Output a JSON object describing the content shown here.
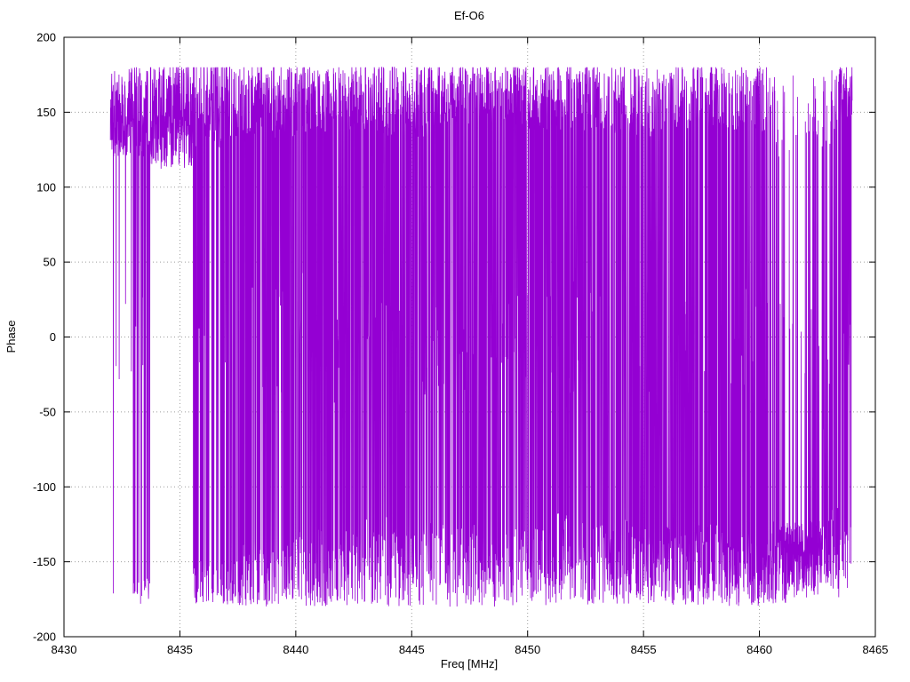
{
  "chart_data": {
    "type": "line",
    "title": "Ef-O6",
    "xlabel": "Freq [MHz]",
    "ylabel": "Phase",
    "xlim": [
      8430,
      8465
    ],
    "ylim": [
      -200,
      200
    ],
    "xticks": [
      8430,
      8435,
      8440,
      8445,
      8450,
      8455,
      8460,
      8465
    ],
    "yticks": [
      -200,
      -150,
      -100,
      -50,
      0,
      50,
      100,
      150,
      200
    ],
    "grid": true,
    "legend": "none",
    "line_color": "#9400d3",
    "grid_color": "#9e9e9e",
    "border_color": "#000000",
    "series_name": "Ef-O6 phase",
    "description": "Dense wrapped interferometric phase vs frequency; values wrap between -180 and +180 degrees. Mostly +130..+180 at the left edge, a clean all-positive band near 8434-8435.5, heavy full-range wrapping across 8436-8460, predominantly -120..-180 around 8460.5-8463, returning to +150..+180 at 8464.",
    "data_x_range": [
      8432.0,
      8464.0
    ],
    "data_y_clamp": [
      -180,
      180
    ],
    "synthesis": {
      "seed": 1337,
      "npoints": 4200,
      "segments": [
        {
          "x0": 8432.0,
          "x1": 8433.0,
          "p_bottom": 0.05,
          "p_mid": 0.02,
          "top": [
            150,
            60
          ],
          "bottom": [
            -172,
            14
          ],
          "mid": [
            0,
            60
          ]
        },
        {
          "x0": 8433.0,
          "x1": 8433.7,
          "p_bottom": 0.22,
          "p_mid": 0.02,
          "top": [
            150,
            60
          ],
          "bottom": [
            -170,
            18
          ],
          "mid": [
            0,
            60
          ]
        },
        {
          "x0": 8433.7,
          "x1": 8435.55,
          "p_bottom": 0.0,
          "p_mid": 0.0,
          "top": [
            148,
            72
          ],
          "bottom": [
            -170,
            10
          ],
          "mid": [
            0,
            40
          ]
        },
        {
          "x0": 8435.55,
          "x1": 8437.6,
          "p_bottom": 0.28,
          "p_mid": 0.03,
          "top": [
            155,
            58
          ],
          "bottom": [
            -164,
            30
          ],
          "mid": [
            0,
            70
          ]
        },
        {
          "x0": 8437.6,
          "x1": 8440.0,
          "p_bottom": 0.33,
          "p_mid": 0.06,
          "top": [
            158,
            50
          ],
          "bottom": [
            -158,
            44
          ],
          "mid": [
            0,
            80
          ]
        },
        {
          "x0": 8440.0,
          "x1": 8443.0,
          "p_bottom": 0.38,
          "p_mid": 0.08,
          "top": [
            160,
            46
          ],
          "bottom": [
            -154,
            52
          ],
          "mid": [
            0,
            90
          ]
        },
        {
          "x0": 8443.0,
          "x1": 8446.0,
          "p_bottom": 0.36,
          "p_mid": 0.1,
          "top": [
            158,
            50
          ],
          "bottom": [
            -150,
            60
          ],
          "mid": [
            0,
            90
          ]
        },
        {
          "x0": 8446.0,
          "x1": 8450.0,
          "p_bottom": 0.34,
          "p_mid": 0.16,
          "top": [
            162,
            40
          ],
          "bottom": [
            -150,
            60
          ],
          "mid": [
            0,
            80
          ]
        },
        {
          "x0": 8450.0,
          "x1": 8453.0,
          "p_bottom": 0.4,
          "p_mid": 0.12,
          "top": [
            160,
            44
          ],
          "bottom": [
            -148,
            62
          ],
          "mid": [
            0,
            80
          ]
        },
        {
          "x0": 8453.0,
          "x1": 8456.0,
          "p_bottom": 0.44,
          "p_mid": 0.1,
          "top": [
            158,
            48
          ],
          "bottom": [
            -150,
            56
          ],
          "mid": [
            0,
            80
          ]
        },
        {
          "x0": 8456.0,
          "x1": 8458.5,
          "p_bottom": 0.5,
          "p_mid": 0.08,
          "top": [
            160,
            44
          ],
          "bottom": [
            -152,
            54
          ],
          "mid": [
            0,
            70
          ]
        },
        {
          "x0": 8458.5,
          "x1": 8460.4,
          "p_bottom": 0.55,
          "p_mid": 0.06,
          "top": [
            158,
            46
          ],
          "bottom": [
            -155,
            50
          ],
          "mid": [
            0,
            70
          ]
        },
        {
          "x0": 8460.4,
          "x1": 8461.3,
          "p_bottom": 0.78,
          "p_mid": 0.04,
          "top": [
            150,
            60
          ],
          "bottom": [
            -150,
            56
          ],
          "mid": [
            0,
            60
          ]
        },
        {
          "x0": 8461.3,
          "x1": 8462.7,
          "p_bottom": 0.85,
          "p_mid": 0.03,
          "top": [
            155,
            50
          ],
          "bottom": [
            -148,
            52
          ],
          "mid": [
            0,
            60
          ]
        },
        {
          "x0": 8462.7,
          "x1": 8463.4,
          "p_bottom": 0.65,
          "p_mid": 0.1,
          "top": [
            150,
            60
          ],
          "bottom": [
            -142,
            56
          ],
          "mid": [
            -40,
            80
          ]
        },
        {
          "x0": 8463.4,
          "x1": 8464.0,
          "p_bottom": 0.25,
          "p_mid": 0.05,
          "top": [
            162,
            38
          ],
          "bottom": [
            -150,
            50
          ],
          "mid": [
            0,
            60
          ]
        }
      ]
    }
  }
}
